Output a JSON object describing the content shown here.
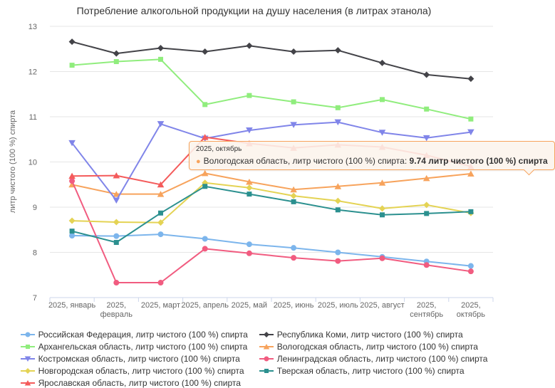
{
  "title": "Потребление алкогольной продукции на душу населения (в литрах этанола)",
  "chart_data": {
    "type": "line",
    "title": "Потребление алкогольной продукции на душу населения (в литрах этанола)",
    "xlabel": "",
    "ylabel": "литр чистого (100 %) спирта",
    "ylim": [
      7,
      13
    ],
    "yticks": [
      7,
      8,
      9,
      10,
      11,
      12,
      13
    ],
    "grid": true,
    "legend_position": "bottom",
    "categories": [
      "2025, январь",
      "2025, февраль",
      "2025, март",
      "2025, апрель",
      "2025, май",
      "2025, июнь",
      "2025, июль",
      "2025, август",
      "2025, сентябрь",
      "2025, октябрь"
    ],
    "series": [
      {
        "name": "Российская Федерация, литр чистого (100 %) спирта",
        "color": "#7cb5ec",
        "marker": "circle",
        "values": [
          8.37,
          8.36,
          8.4,
          8.3,
          8.18,
          8.1,
          8.0,
          7.9,
          7.8,
          7.7
        ]
      },
      {
        "name": "Республика Коми, литр чистого (100 %) спирта",
        "color": "#434348",
        "marker": "diamond",
        "values": [
          12.66,
          12.4,
          12.52,
          12.44,
          12.57,
          12.44,
          12.47,
          12.19,
          11.93,
          11.84
        ]
      },
      {
        "name": "Архангельская область, литр чистого (100 %) спирта",
        "color": "#90ed7d",
        "marker": "square",
        "values": [
          12.14,
          12.22,
          12.27,
          11.27,
          11.47,
          11.33,
          11.2,
          11.38,
          11.17,
          10.95
        ]
      },
      {
        "name": "Вологодская область, литр чистого (100 %) спирта",
        "color": "#f7a35c",
        "marker": "triangle",
        "values": [
          9.5,
          9.29,
          9.29,
          9.75,
          9.56,
          9.39,
          9.46,
          9.54,
          9.64,
          9.74
        ]
      },
      {
        "name": "Костромская область, литр чистого (100 %) спирта",
        "color": "#8085e9",
        "marker": "triangle-down",
        "values": [
          10.42,
          9.15,
          10.84,
          10.52,
          10.7,
          10.82,
          10.88,
          10.65,
          10.53,
          10.66
        ]
      },
      {
        "name": "Ленинградская область, литр чистого (100 %) спирта",
        "color": "#f15c80",
        "marker": "circle",
        "values": [
          9.58,
          7.33,
          7.33,
          8.08,
          7.98,
          7.88,
          7.81,
          7.87,
          7.72,
          7.58
        ]
      },
      {
        "name": "Новгородская область, литр чистого (100 %) спирта",
        "color": "#e4d354",
        "marker": "diamond",
        "values": [
          8.7,
          8.67,
          8.66,
          9.54,
          9.43,
          9.25,
          9.14,
          8.97,
          9.05,
          8.87
        ]
      },
      {
        "name": "Тверская область, литр чистого (100 %) спирта",
        "color": "#2b908f",
        "marker": "square",
        "values": [
          8.47,
          8.22,
          8.87,
          9.46,
          9.29,
          9.12,
          8.94,
          8.83,
          8.86,
          8.9
        ]
      },
      {
        "name": "Ярославская область, литр чистого (100 %) спирта",
        "color": "#f45b5b",
        "marker": "triangle",
        "values": [
          9.69,
          9.7,
          9.5,
          10.55,
          10.41,
          10.31,
          10.38,
          10.33,
          10.15,
          9.9
        ]
      }
    ]
  },
  "tooltip": {
    "header": "2025, октябрь",
    "bullet": "●",
    "series_name": "Вологодская область, литр чистого (100 %) спирта",
    "separator": ": ",
    "value": "9.74 литр чистого (100 %) спирта",
    "border_color": "#f7a35c"
  },
  "colors": {
    "grid_line": "#e6e6e6",
    "axis_line": "#ccd6eb",
    "axis_label": "#666666",
    "title_text": "#333333"
  }
}
